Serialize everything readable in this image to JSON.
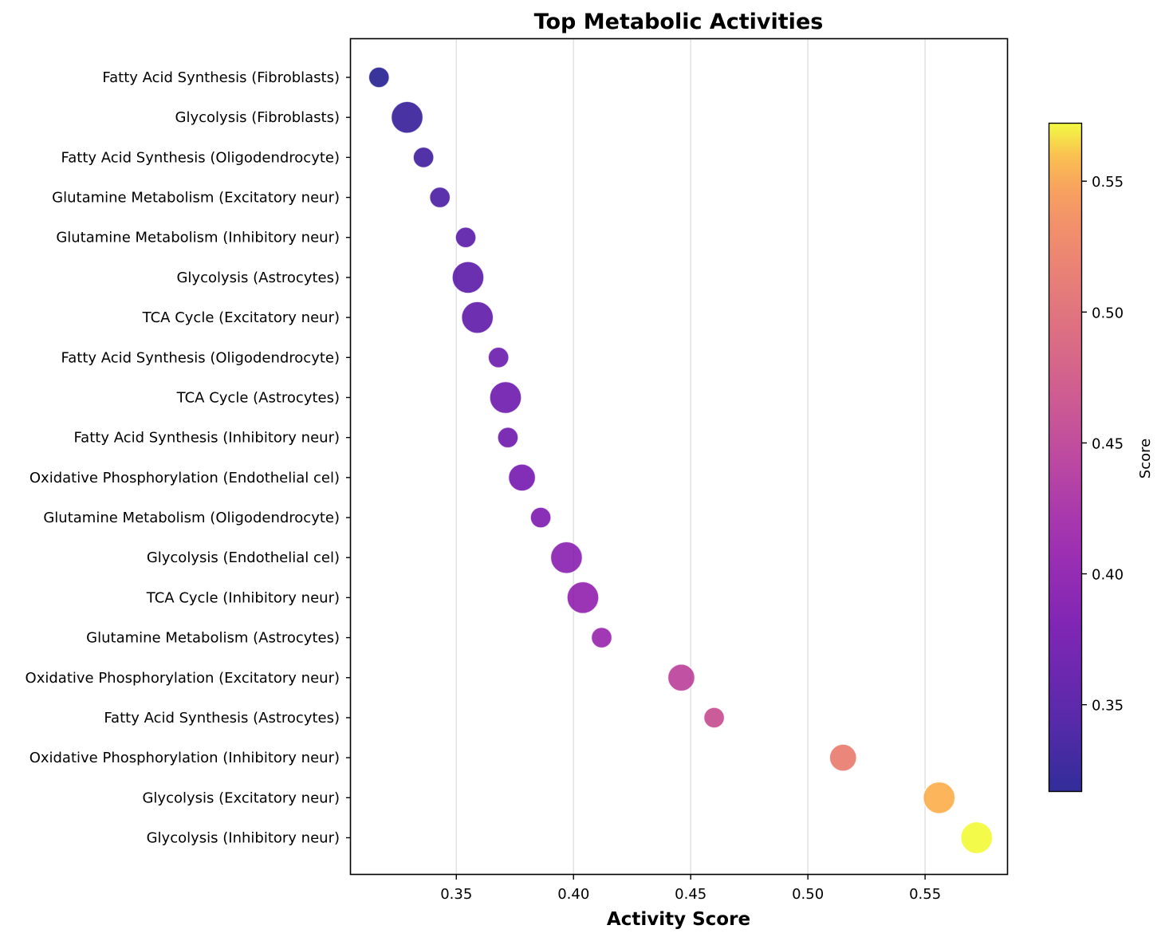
{
  "chart_data": {
    "type": "scatter",
    "title": "Top Metabolic Activities",
    "xlabel": "Activity Score",
    "ylabel": "",
    "xlim": [
      0.305,
      0.585
    ],
    "xticks": [
      0.35,
      0.4,
      0.45,
      0.5,
      0.55
    ],
    "xtick_labels": [
      "0.35",
      "0.40",
      "0.45",
      "0.50",
      "0.55"
    ],
    "grid": "vertical, light gray",
    "colormap": "plasma",
    "colorbar": {
      "label": "Score",
      "range": [
        0.317,
        0.572
      ],
      "ticks": [
        0.35,
        0.4,
        0.45,
        0.5,
        0.55
      ],
      "tick_labels": [
        "0.35",
        "0.40",
        "0.45",
        "0.50",
        "0.55"
      ]
    },
    "points": [
      {
        "label": "Fatty Acid Synthesis (Fibroblasts)",
        "x": 0.317,
        "size": "small"
      },
      {
        "label": "Glycolysis (Fibroblasts)",
        "x": 0.329,
        "size": "large"
      },
      {
        "label": "Fatty Acid Synthesis (Oligodendrocyte)",
        "x": 0.336,
        "size": "small"
      },
      {
        "label": "Glutamine Metabolism (Excitatory neur)",
        "x": 0.343,
        "size": "small"
      },
      {
        "label": "Glutamine Metabolism (Inhibitory neur)",
        "x": 0.354,
        "size": "small"
      },
      {
        "label": "Glycolysis (Astrocytes)",
        "x": 0.355,
        "size": "large"
      },
      {
        "label": "TCA Cycle (Excitatory neur)",
        "x": 0.359,
        "size": "large"
      },
      {
        "label": "Fatty Acid Synthesis (Oligodendrocyte)",
        "x": 0.368,
        "size": "small"
      },
      {
        "label": "TCA Cycle (Astrocytes)",
        "x": 0.371,
        "size": "large"
      },
      {
        "label": "Fatty Acid Synthesis (Inhibitory neur)",
        "x": 0.372,
        "size": "small"
      },
      {
        "label": "Oxidative Phosphorylation (Endothelial cel)",
        "x": 0.378,
        "size": "medium"
      },
      {
        "label": "Glutamine Metabolism (Oligodendrocyte)",
        "x": 0.386,
        "size": "small"
      },
      {
        "label": "Glycolysis (Endothelial cel)",
        "x": 0.397,
        "size": "large"
      },
      {
        "label": "TCA Cycle (Inhibitory neur)",
        "x": 0.404,
        "size": "large"
      },
      {
        "label": "Glutamine Metabolism (Astrocytes)",
        "x": 0.412,
        "size": "small"
      },
      {
        "label": "Oxidative Phosphorylation (Excitatory neur)",
        "x": 0.446,
        "size": "medium"
      },
      {
        "label": "Fatty Acid Synthesis (Astrocytes)",
        "x": 0.46,
        "size": "small"
      },
      {
        "label": "Oxidative Phosphorylation (Inhibitory neur)",
        "x": 0.515,
        "size": "medium"
      },
      {
        "label": "Glycolysis (Excitatory neur)",
        "x": 0.556,
        "size": "large"
      },
      {
        "label": "Glycolysis (Inhibitory neur)",
        "x": 0.572,
        "size": "large"
      }
    ]
  }
}
